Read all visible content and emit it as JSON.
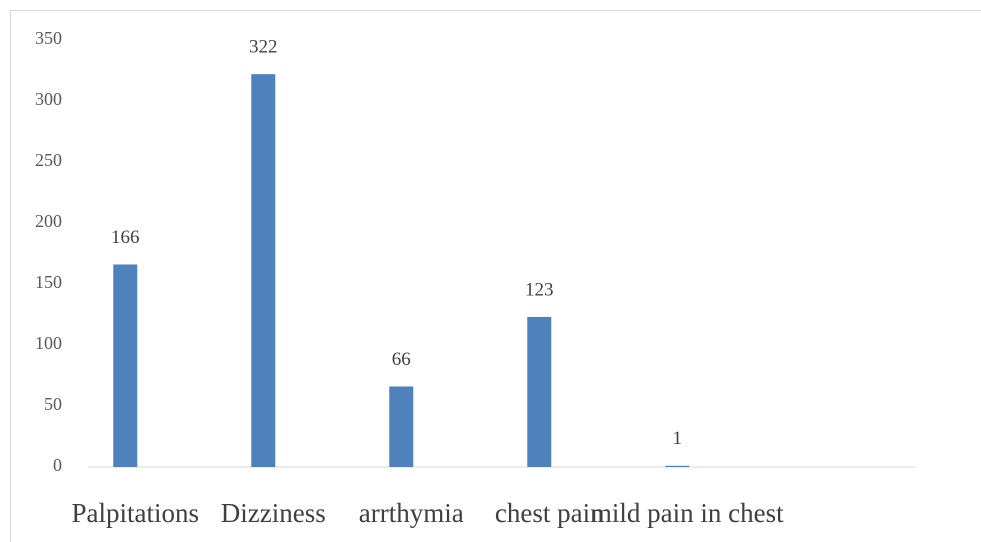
{
  "chart_data": {
    "type": "bar",
    "categories": [
      "Palpitations",
      "Dizziness",
      "arrthymia",
      "chest pain",
      "mild pain in chest"
    ],
    "values": [
      166,
      322,
      66,
      123,
      1
    ],
    "color": "#4f81bd",
    "ylim": [
      0,
      350
    ],
    "yticks": [
      0,
      50,
      100,
      150,
      200,
      250,
      300,
      350
    ],
    "grid": false
  }
}
